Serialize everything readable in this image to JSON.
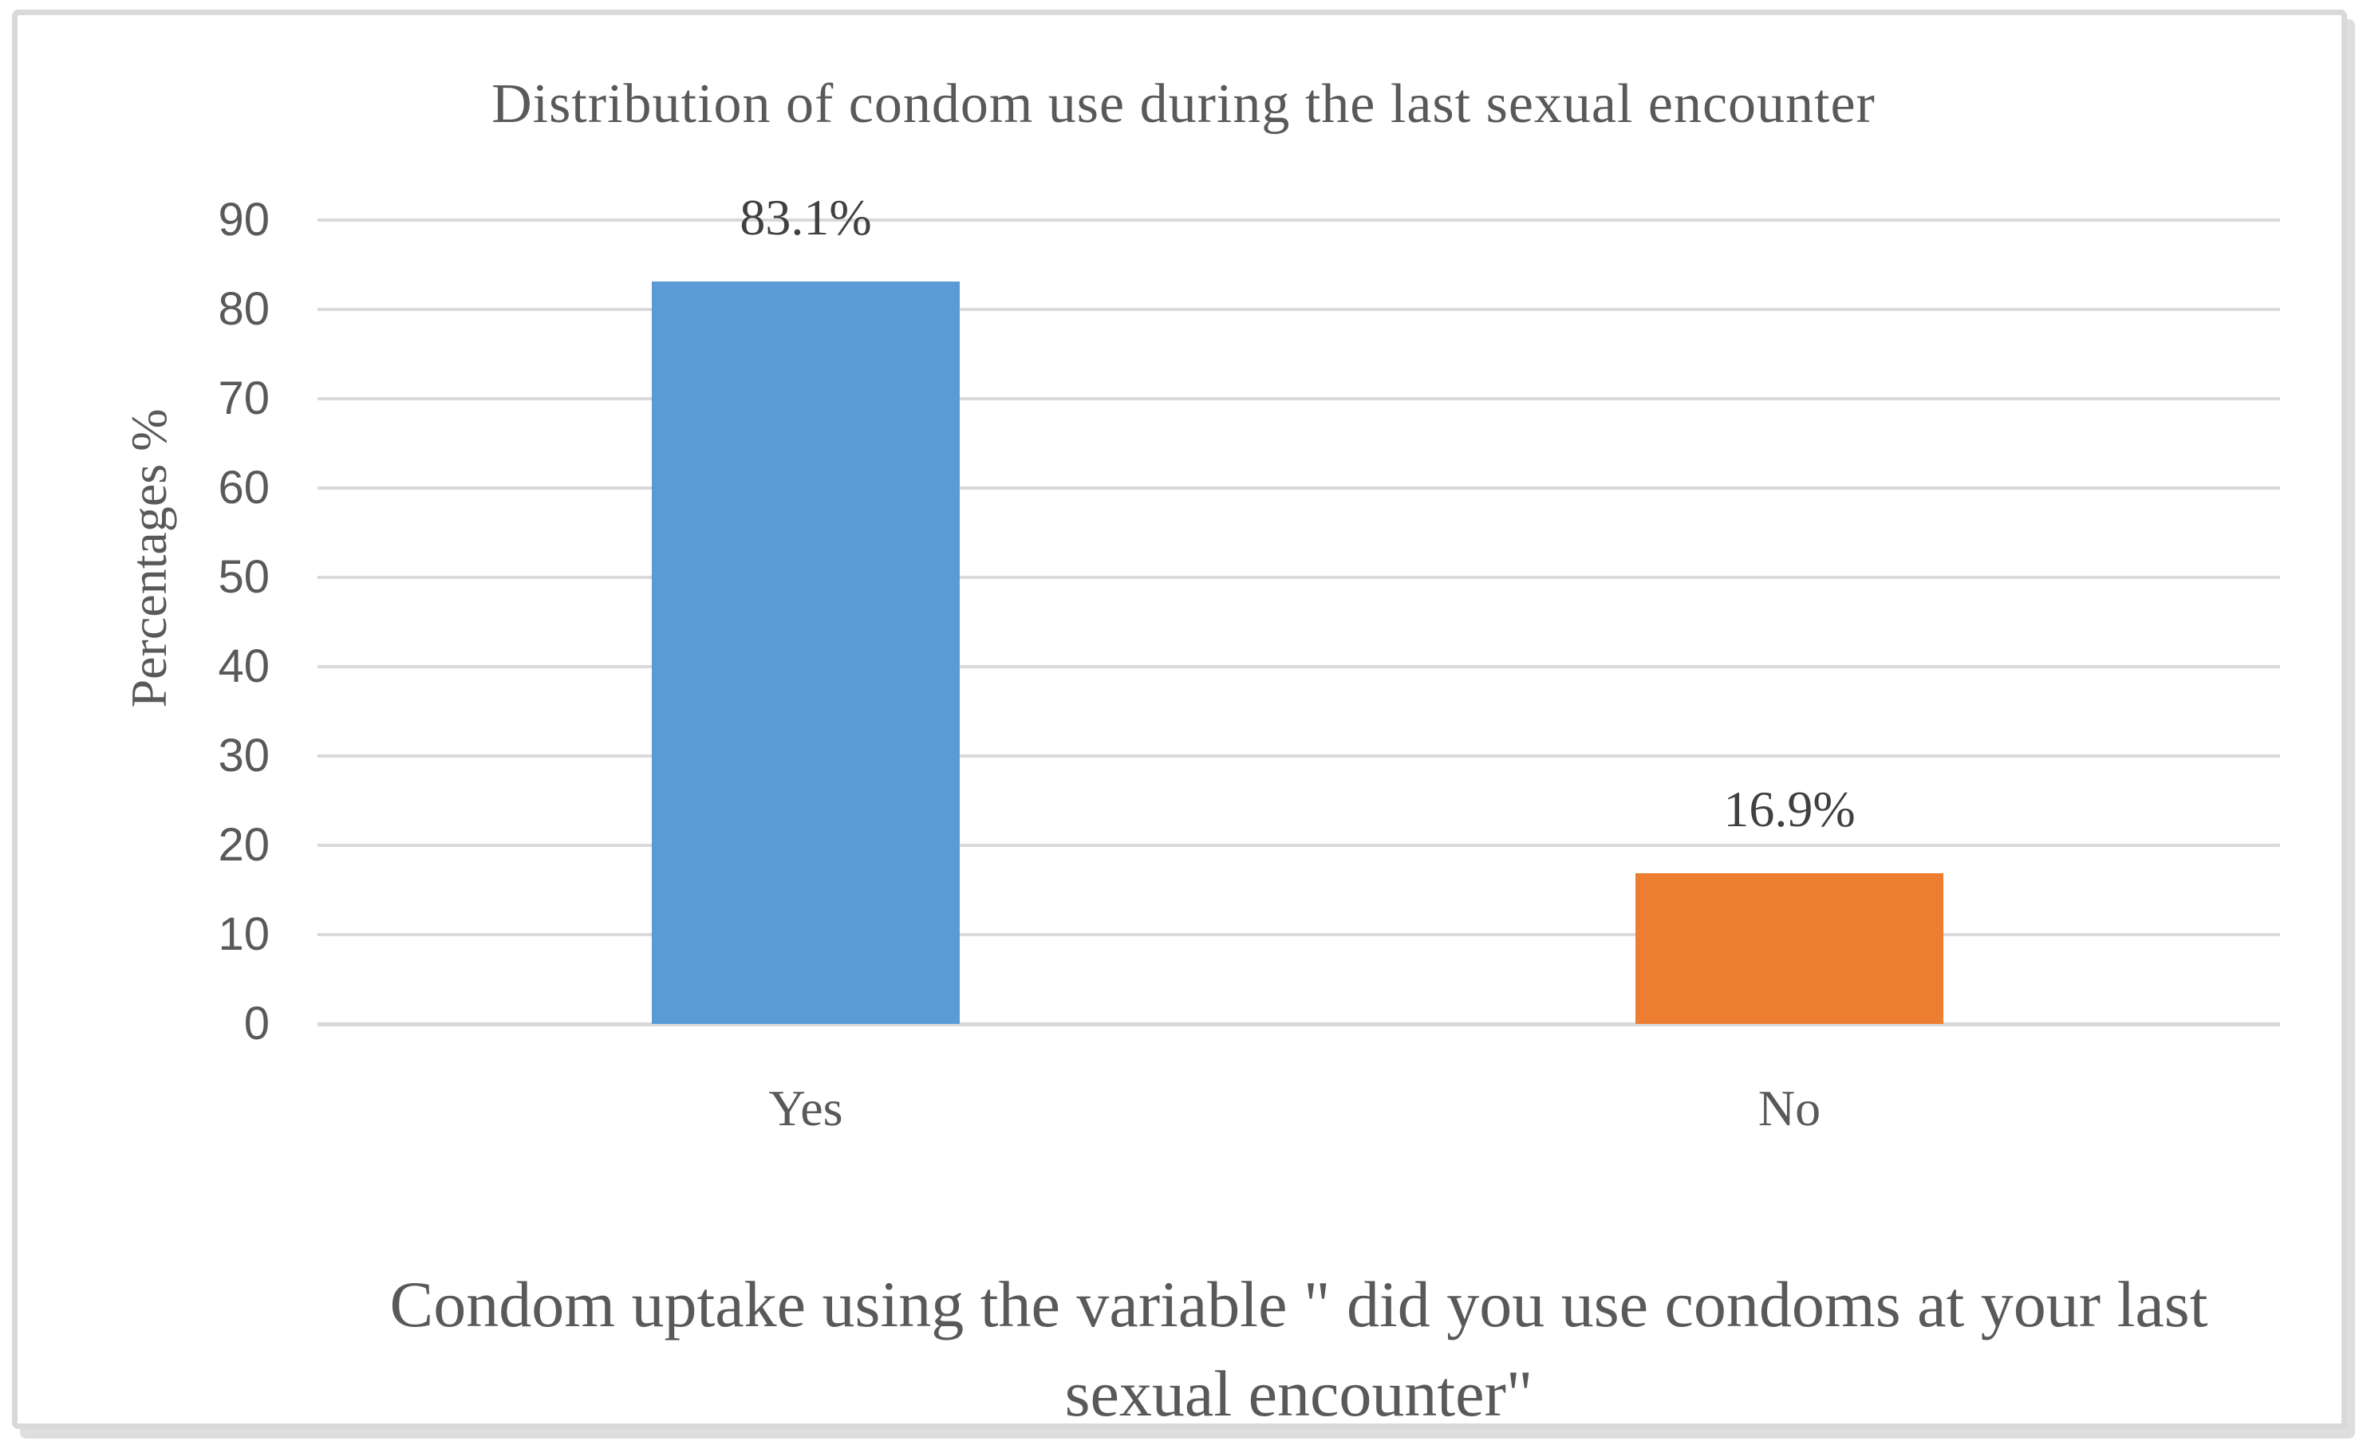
{
  "chart_data": {
    "type": "bar",
    "title": "Distribution of condom use during the last sexual encounter",
    "categories": [
      "Yes",
      "No"
    ],
    "values": [
      83.1,
      16.9
    ],
    "data_labels": [
      "83.1%",
      "16.9%"
    ],
    "bar_colors": [
      "#5B9BD5",
      "#ED7D31"
    ],
    "xlabel": "Condom uptake using the variable \" did you use condoms at your last sexual encounter\"",
    "ylabel": "Percentages %",
    "ylim": [
      0,
      90
    ],
    "yticks": [
      0,
      10,
      20,
      30,
      40,
      50,
      60,
      70,
      80,
      90
    ],
    "grid": "horizontal",
    "legend": "none",
    "gridline_color": "#D9D9D9",
    "frame_color": "#D9D9D9",
    "text_color": "#595959",
    "data_label_color": "#404040"
  }
}
